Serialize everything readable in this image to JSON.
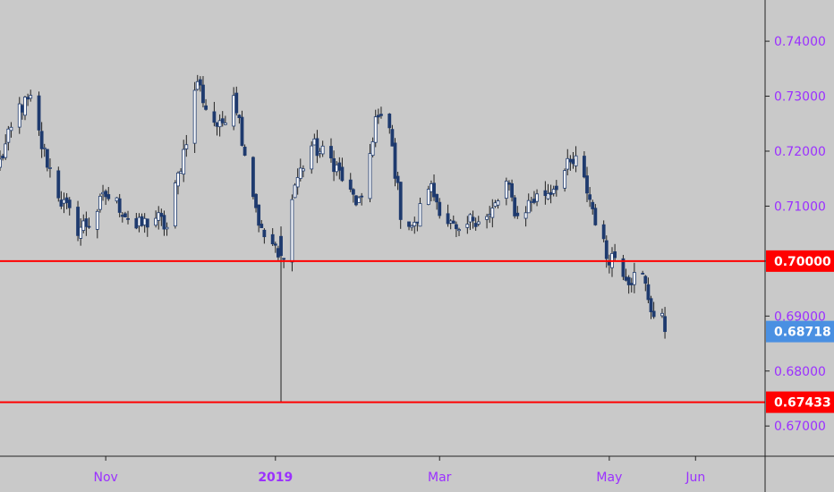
{
  "chart_data": {
    "type": "candlestick",
    "title": "",
    "xlabel": "",
    "ylabel": "",
    "ylim": [
      0.6645,
      0.7475
    ],
    "xlim": [
      "2018-09-24",
      "2019-06-26"
    ],
    "grid": false,
    "y_ticks": [
      "0.74000",
      "0.73000",
      "0.72000",
      "0.71000",
      "0.70000",
      "0.69000",
      "0.68000",
      "0.67000"
    ],
    "x_ticks": [
      {
        "date": "2018-11-01",
        "label": "Nov",
        "bold": false
      },
      {
        "date": "2019-01-01",
        "label": "2019",
        "bold": true
      },
      {
        "date": "2019-03-01",
        "label": "Mar",
        "bold": false
      },
      {
        "date": "2019-05-01",
        "label": "May",
        "bold": false
      },
      {
        "date": "2019-06-01",
        "label": "Jun",
        "bold": false
      }
    ],
    "horizontal_lines": [
      {
        "price": 0.7,
        "label": "0.70000",
        "color": "#ff0000"
      },
      {
        "price": 0.67433,
        "label": "0.67433",
        "color": "#ff0000"
      }
    ],
    "last_price": {
      "price": 0.68718,
      "label": "0.68718",
      "color": "#4a90e2"
    },
    "colors": {
      "up": "#ffffff",
      "down": "#1e3a6e",
      "wick": "#222222",
      "background": "#c9c9c9",
      "axis_text": "#9b30ff"
    },
    "anchors": [
      [
        "2018-09-24",
        0.718
      ],
      [
        "2018-10-01",
        0.728
      ],
      [
        "2018-10-05",
        0.729
      ],
      [
        "2018-10-09",
        0.721
      ],
      [
        "2018-10-16",
        0.711
      ],
      [
        "2018-10-22",
        0.706
      ],
      [
        "2018-10-26",
        0.707
      ],
      [
        "2018-11-01",
        0.712
      ],
      [
        "2018-11-06",
        0.71
      ],
      [
        "2018-11-12",
        0.706
      ],
      [
        "2018-11-19",
        0.708
      ],
      [
        "2018-11-23",
        0.706
      ],
      [
        "2018-11-29",
        0.72
      ],
      [
        "2018-12-04",
        0.733
      ],
      [
        "2018-12-07",
        0.728
      ],
      [
        "2018-12-12",
        0.724
      ],
      [
        "2018-12-17",
        0.731
      ],
      [
        "2018-12-21",
        0.72
      ],
      [
        "2018-12-27",
        0.705
      ],
      [
        "2018-12-31",
        0.703
      ],
      [
        "2019-01-03",
        0.699
      ],
      [
        "2019-01-08",
        0.714
      ],
      [
        "2019-01-14",
        0.721
      ],
      [
        "2019-01-22",
        0.718
      ],
      [
        "2019-01-28",
        0.712
      ],
      [
        "2019-02-01",
        0.71
      ],
      [
        "2019-02-06",
        0.726
      ],
      [
        "2019-02-11",
        0.724
      ],
      [
        "2019-02-15",
        0.709
      ],
      [
        "2019-02-20",
        0.706
      ],
      [
        "2019-02-25",
        0.714
      ],
      [
        "2019-03-01",
        0.71
      ],
      [
        "2019-03-08",
        0.704
      ],
      [
        "2019-03-13",
        0.708
      ],
      [
        "2019-03-19",
        0.708
      ],
      [
        "2019-03-25",
        0.714
      ],
      [
        "2019-03-29",
        0.708
      ],
      [
        "2019-04-03",
        0.711
      ],
      [
        "2019-04-10",
        0.713
      ],
      [
        "2019-04-16",
        0.717
      ],
      [
        "2019-04-19",
        0.718
      ],
      [
        "2019-04-23",
        0.713
      ],
      [
        "2019-04-30",
        0.701
      ],
      [
        "2019-05-03",
        0.701
      ],
      [
        "2019-05-08",
        0.697
      ],
      [
        "2019-05-13",
        0.697
      ],
      [
        "2019-05-17",
        0.69
      ],
      [
        "2019-05-20",
        0.689
      ],
      [
        "2019-05-21",
        0.687
      ]
    ],
    "extreme_candles": [
      {
        "date": "2019-01-03",
        "open": 0.7045,
        "high": 0.7063,
        "low": 0.67433,
        "close": 0.701
      }
    ]
  }
}
